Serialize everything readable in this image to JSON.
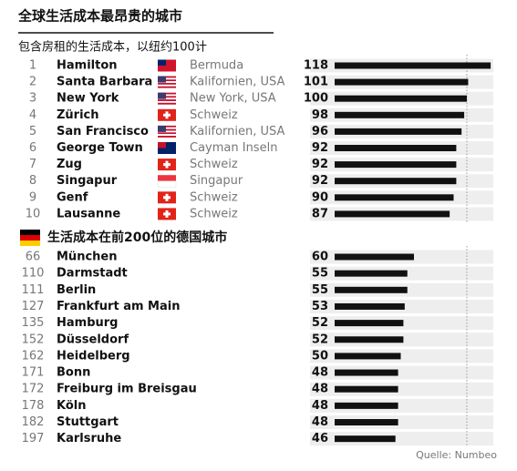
{
  "chart_data": [
    {
      "type": "bar",
      "title": "全球生活成本最昂贵的城市",
      "subtitle": "包含房租的生活成本，以纽约100计",
      "ranks": [
        "1",
        "2",
        "3",
        "4",
        "5",
        "6",
        "7",
        "8",
        "9",
        "10"
      ],
      "categories": [
        "Hamilton",
        "Santa Barbara",
        "New York",
        "Zürich",
        "San Francisco",
        "George Town",
        "Zug",
        "Singapur",
        "Genf",
        "Lausanne"
      ],
      "countries": [
        "Bermuda",
        "Kalifornien, USA",
        "New York, USA",
        "Schweiz",
        "Kalifornien, USA",
        "Cayman Inseln",
        "Schweiz",
        "Singapur",
        "Schweiz",
        "Schweiz"
      ],
      "values": [
        118,
        101,
        100,
        98,
        96,
        92,
        92,
        92,
        90,
        87
      ],
      "color": "#111111",
      "xlim": [
        0,
        120
      ],
      "reference_line": 100
    },
    {
      "type": "bar",
      "title": "生活成本在前200位的德国城市",
      "ranks": [
        "66",
        "110",
        "111",
        "127",
        "135",
        "152",
        "162",
        "171",
        "172",
        "178",
        "182",
        "197"
      ],
      "categories": [
        "München",
        "Darmstadt",
        "Berlin",
        "Frankfurt am Main",
        "Hamburg",
        "Düsseldorf",
        "Heidelberg",
        "Bonn",
        "Freiburg im Breisgau",
        "Köln",
        "Stuttgart",
        "Karlsruhe"
      ],
      "values": [
        60,
        55,
        55,
        53,
        52,
        52,
        50,
        48,
        48,
        48,
        48,
        46
      ],
      "color": "#111111",
      "xlim": [
        0,
        120
      ],
      "reference_line": 100
    }
  ],
  "source": "Quelle: Numbeo"
}
